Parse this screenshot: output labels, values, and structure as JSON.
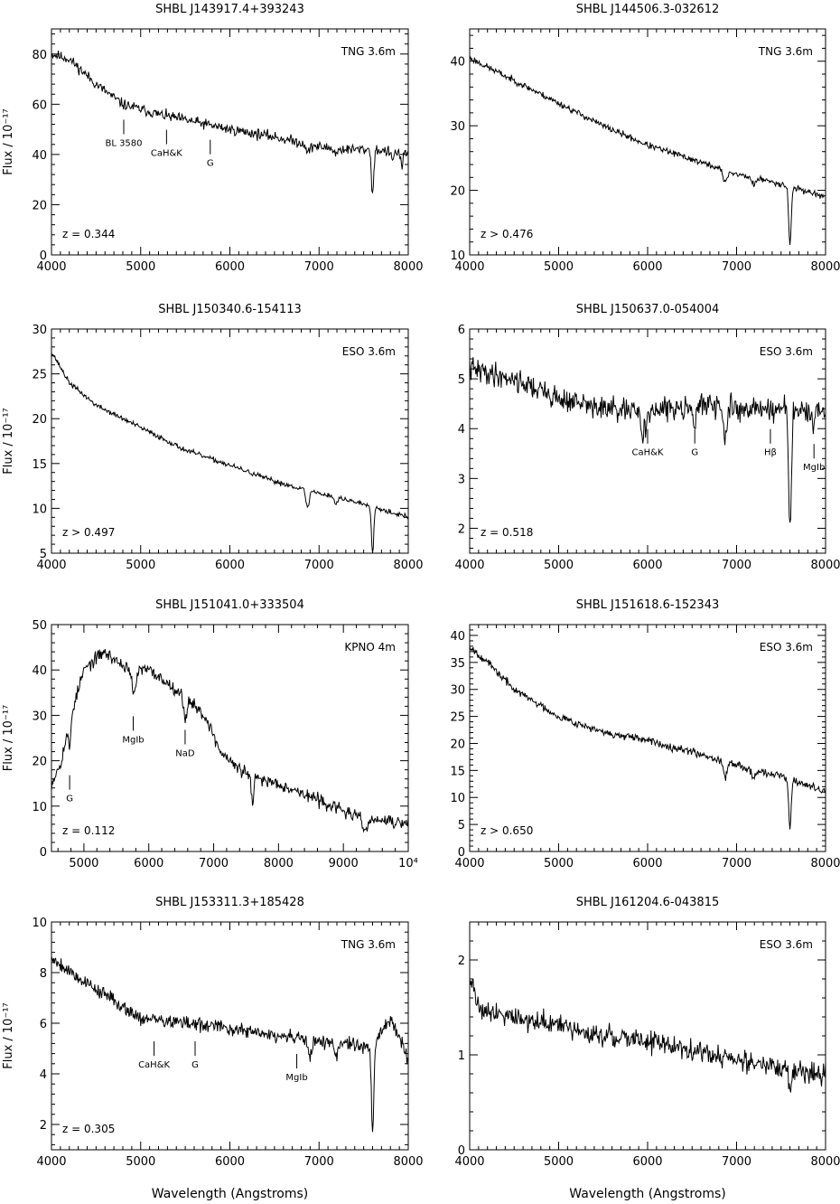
{
  "chart_data": [
    {
      "type": "line",
      "title": "SHBL J143917.4+393243",
      "telescope": "TNG 3.6m",
      "redshift": "z = 0.344",
      "ylabel": "Flux / 10⁻¹⁷",
      "xlabel": "",
      "xlim": [
        4000,
        8000
      ],
      "ylim": [
        0,
        90
      ],
      "xticks": [
        4000,
        5000,
        6000,
        7000,
        8000
      ],
      "xtick_labels": [
        "4000",
        "5000",
        "6000",
        "7000",
        "8000"
      ],
      "yticks": [
        0,
        20,
        40,
        60,
        80
      ],
      "ytick_labels": [
        "0",
        "20",
        "40",
        "60",
        "80"
      ],
      "features": [
        {
          "label": "BL 3580",
          "x": 4810,
          "y": 56
        },
        {
          "label": "CaH&K",
          "x": 5290,
          "y": 52
        },
        {
          "label": "G",
          "x": 5780,
          "y": 48
        }
      ],
      "spectrum": {
        "anchors": [
          [
            4000,
            80
          ],
          [
            4200,
            78
          ],
          [
            4500,
            68
          ],
          [
            4800,
            60
          ],
          [
            5200,
            56
          ],
          [
            5600,
            53
          ],
          [
            6000,
            50
          ],
          [
            6500,
            47
          ],
          [
            7000,
            43
          ],
          [
            7300,
            42
          ],
          [
            7600,
            42
          ],
          [
            8000,
            40
          ]
        ],
        "dips": [
          [
            6880,
            3,
            30
          ],
          [
            7190,
            2,
            30
          ],
          [
            7600,
            18,
            18
          ],
          [
            7820,
            4,
            15
          ],
          [
            7930,
            6,
            15
          ]
        ],
        "noise": 1.5,
        "seed": 11
      }
    },
    {
      "type": "line",
      "title": "SHBL J144506.3-032612",
      "telescope": "TNG 3.6m",
      "redshift": "z > 0.476",
      "ylabel": "",
      "xlabel": "",
      "xlim": [
        4000,
        8000
      ],
      "ylim": [
        10,
        45
      ],
      "xticks": [
        4000,
        5000,
        6000,
        7000,
        8000
      ],
      "xtick_labels": [
        "4000",
        "5000",
        "6000",
        "7000",
        "8000"
      ],
      "yticks": [
        10,
        20,
        30,
        40
      ],
      "ytick_labels": [
        "10",
        "20",
        "30",
        "40"
      ],
      "features": [],
      "spectrum": {
        "anchors": [
          [
            4000,
            40.5
          ],
          [
            4500,
            37
          ],
          [
            5000,
            33.5
          ],
          [
            5500,
            30
          ],
          [
            6000,
            27
          ],
          [
            6500,
            24.8
          ],
          [
            7000,
            22.5
          ],
          [
            7500,
            21
          ],
          [
            8000,
            19
          ]
        ],
        "dips": [
          [
            6870,
            2,
            30
          ],
          [
            7190,
            1,
            30
          ],
          [
            7600,
            9,
            20
          ]
        ],
        "noise": 0.35,
        "seed": 23
      }
    },
    {
      "type": "line",
      "title": "SHBL J150340.6-154113",
      "telescope": "ESO 3.6m",
      "redshift": "z > 0.497",
      "ylabel": "Flux / 10⁻¹⁷",
      "xlabel": "",
      "xlim": [
        4000,
        8000
      ],
      "ylim": [
        5,
        30
      ],
      "xticks": [
        4000,
        5000,
        6000,
        7000,
        8000
      ],
      "xtick_labels": [
        "4000",
        "5000",
        "6000",
        "7000",
        "8000"
      ],
      "yticks": [
        5,
        10,
        15,
        20,
        25,
        30
      ],
      "ytick_labels": [
        "5",
        "10",
        "15",
        "20",
        "25",
        "30"
      ],
      "features": [],
      "spectrum": {
        "anchors": [
          [
            4000,
            27.5
          ],
          [
            4200,
            24
          ],
          [
            4500,
            21.5
          ],
          [
            5000,
            19
          ],
          [
            5500,
            16.5
          ],
          [
            6000,
            14.8
          ],
          [
            6500,
            13
          ],
          [
            7000,
            11.7
          ],
          [
            7500,
            10.5
          ],
          [
            8000,
            9
          ]
        ],
        "dips": [
          [
            6870,
            2,
            25
          ],
          [
            7190,
            0.8,
            25
          ],
          [
            7600,
            5,
            18
          ]
        ],
        "noise": 0.2,
        "seed": 37
      }
    },
    {
      "type": "line",
      "title": "SHBL J150637.0-054004",
      "telescope": "ESO 3.6m",
      "redshift": "z = 0.518",
      "ylabel": "",
      "xlabel": "",
      "xlim": [
        4000,
        8000
      ],
      "ylim": [
        1.5,
        6
      ],
      "xticks": [
        4000,
        5000,
        6000,
        7000,
        8000
      ],
      "xtick_labels": [
        "4000",
        "5000",
        "6000",
        "7000",
        "8000"
      ],
      "yticks": [
        2,
        3,
        4,
        5,
        6
      ],
      "ytick_labels": [
        "2",
        "3",
        "4",
        "5",
        "6"
      ],
      "features": [
        {
          "label": "CaH&K",
          "x": 6000,
          "y": 4.1
        },
        {
          "label": "G",
          "x": 6530,
          "y": 4.1
        },
        {
          "label": "Hβ",
          "x": 7380,
          "y": 4.1
        },
        {
          "label": "MgIb",
          "x": 7870,
          "y": 3.8
        }
      ],
      "spectrum": {
        "anchors": [
          [
            4000,
            5.2
          ],
          [
            4500,
            5.0
          ],
          [
            5000,
            4.6
          ],
          [
            5500,
            4.4
          ],
          [
            6000,
            4.3
          ],
          [
            6500,
            4.5
          ],
          [
            7000,
            4.4
          ],
          [
            7500,
            4.4
          ],
          [
            8000,
            4.3
          ]
        ],
        "dips": [
          [
            5950,
            0.4,
            30
          ],
          [
            6530,
            0.5,
            25
          ],
          [
            6870,
            0.7,
            25
          ],
          [
            7600,
            2.4,
            22
          ],
          [
            7870,
            0.4,
            20
          ]
        ],
        "noise": 0.17,
        "seed": 41
      }
    },
    {
      "type": "line",
      "title": "SHBL J151041.0+333504",
      "telescope": "KPNO 4m",
      "redshift": "z = 0.112",
      "ylabel": "Flux / 10⁻¹⁷",
      "xlabel": "",
      "xlim": [
        4500,
        10000
      ],
      "ylim": [
        0,
        50
      ],
      "xticks": [
        5000,
        6000,
        7000,
        8000,
        9000,
        10000
      ],
      "xtick_labels": [
        "5000",
        "6000",
        "7000",
        "8000",
        "9000",
        "10⁴"
      ],
      "yticks": [
        0,
        10,
        20,
        30,
        40,
        50
      ],
      "ytick_labels": [
        "0",
        "10",
        "20",
        "30",
        "40",
        "50"
      ],
      "features": [
        {
          "label": "G",
          "x": 4780,
          "y": 18
        },
        {
          "label": "MgIb",
          "x": 5760,
          "y": 31
        },
        {
          "label": "NaD",
          "x": 6560,
          "y": 28
        }
      ],
      "spectrum": {
        "anchors": [
          [
            4500,
            15
          ],
          [
            4650,
            20
          ],
          [
            4800,
            30
          ],
          [
            5000,
            40
          ],
          [
            5300,
            44
          ],
          [
            5600,
            41
          ],
          [
            5800,
            40
          ],
          [
            6000,
            40
          ],
          [
            6300,
            37
          ],
          [
            6600,
            34
          ],
          [
            6900,
            29
          ],
          [
            7100,
            22
          ],
          [
            7400,
            18
          ],
          [
            7700,
            16
          ],
          [
            8000,
            15
          ],
          [
            8500,
            12
          ],
          [
            9000,
            9
          ],
          [
            9300,
            7
          ],
          [
            9500,
            7
          ],
          [
            10000,
            6
          ]
        ],
        "dips": [
          [
            4780,
            6,
            25
          ],
          [
            5770,
            6,
            40
          ],
          [
            6560,
            5,
            40
          ],
          [
            7600,
            7,
            25
          ],
          [
            9350,
            2,
            60
          ]
        ],
        "noise": 1.0,
        "seed": 53
      }
    },
    {
      "type": "line",
      "title": "SHBL J151618.6-152343",
      "telescope": "ESO 3.6m",
      "redshift": "z > 0.650",
      "ylabel": "",
      "xlabel": "",
      "xlim": [
        4000,
        8000
      ],
      "ylim": [
        0,
        42
      ],
      "xticks": [
        4000,
        5000,
        6000,
        7000,
        8000
      ],
      "xtick_labels": [
        "4000",
        "5000",
        "6000",
        "7000",
        "8000"
      ],
      "yticks": [
        0,
        5,
        10,
        15,
        20,
        25,
        30,
        35,
        40
      ],
      "ytick_labels": [
        "0",
        "5",
        "10",
        "15",
        "20",
        "25",
        "30",
        "35",
        "40"
      ],
      "features": [],
      "spectrum": {
        "anchors": [
          [
            4000,
            38
          ],
          [
            4200,
            35
          ],
          [
            4500,
            30
          ],
          [
            5000,
            25
          ],
          [
            5500,
            22
          ],
          [
            6000,
            20.5
          ],
          [
            6500,
            18.5
          ],
          [
            7000,
            16
          ],
          [
            7500,
            14
          ],
          [
            8000,
            11
          ]
        ],
        "dips": [
          [
            6870,
            3,
            25
          ],
          [
            7190,
            2,
            25
          ],
          [
            7600,
            9,
            20
          ]
        ],
        "noise": 0.5,
        "seed": 67
      }
    },
    {
      "type": "line",
      "title": "SHBL J153311.3+185428",
      "telescope": "TNG 3.6m",
      "redshift": "z = 0.305",
      "ylabel": "Flux / 10⁻¹⁷",
      "xlabel": "Wavelength (Angstroms)",
      "xlim": [
        4000,
        8000
      ],
      "ylim": [
        1,
        10
      ],
      "xticks": [
        4000,
        5000,
        6000,
        7000,
        8000
      ],
      "xtick_labels": [
        "4000",
        "5000",
        "6000",
        "7000",
        "8000"
      ],
      "yticks": [
        2,
        4,
        6,
        8,
        10
      ],
      "ytick_labels": [
        "2",
        "4",
        "6",
        "8",
        "10"
      ],
      "features": [
        {
          "label": "CaH&K",
          "x": 5150,
          "y": 5.5
        },
        {
          "label": "G",
          "x": 5610,
          "y": 5.5
        },
        {
          "label": "MgIb",
          "x": 6750,
          "y": 5.0
        }
      ],
      "spectrum": {
        "anchors": [
          [
            4000,
            8.6
          ],
          [
            4300,
            7.8
          ],
          [
            4700,
            6.9
          ],
          [
            5000,
            6.2
          ],
          [
            5500,
            6.0
          ],
          [
            6000,
            5.8
          ],
          [
            6500,
            5.5
          ],
          [
            7000,
            5.3
          ],
          [
            7300,
            5.2
          ],
          [
            7600,
            5.0
          ],
          [
            7800,
            6.2
          ],
          [
            8000,
            4.6
          ]
        ],
        "dips": [
          [
            6900,
            0.8,
            25
          ],
          [
            7190,
            0.6,
            25
          ],
          [
            7600,
            3.3,
            18
          ]
        ],
        "noise": 0.2,
        "seed": 79
      }
    },
    {
      "type": "line",
      "title": "SHBL J161204.6-043815",
      "telescope": "ESO 3.6m",
      "redshift": "",
      "ylabel": "",
      "xlabel": "Wavelength (Angstroms)",
      "xlim": [
        4000,
        8000
      ],
      "ylim": [
        0,
        2.4
      ],
      "xticks": [
        4000,
        5000,
        6000,
        7000,
        8000
      ],
      "xtick_labels": [
        "4000",
        "5000",
        "6000",
        "7000",
        "8000"
      ],
      "yticks": [
        0,
        1,
        2
      ],
      "ytick_labels": [
        "0",
        "1",
        "2"
      ],
      "features": [],
      "spectrum": {
        "anchors": [
          [
            4000,
            1.85
          ],
          [
            4100,
            1.5
          ],
          [
            4500,
            1.4
          ],
          [
            5000,
            1.3
          ],
          [
            5500,
            1.2
          ],
          [
            6000,
            1.15
          ],
          [
            6500,
            1.05
          ],
          [
            7000,
            0.95
          ],
          [
            7500,
            0.85
          ],
          [
            8000,
            0.8
          ]
        ],
        "dips": [
          [
            7600,
            0.25,
            20
          ]
        ],
        "noise": 0.08,
        "seed": 91
      }
    }
  ]
}
